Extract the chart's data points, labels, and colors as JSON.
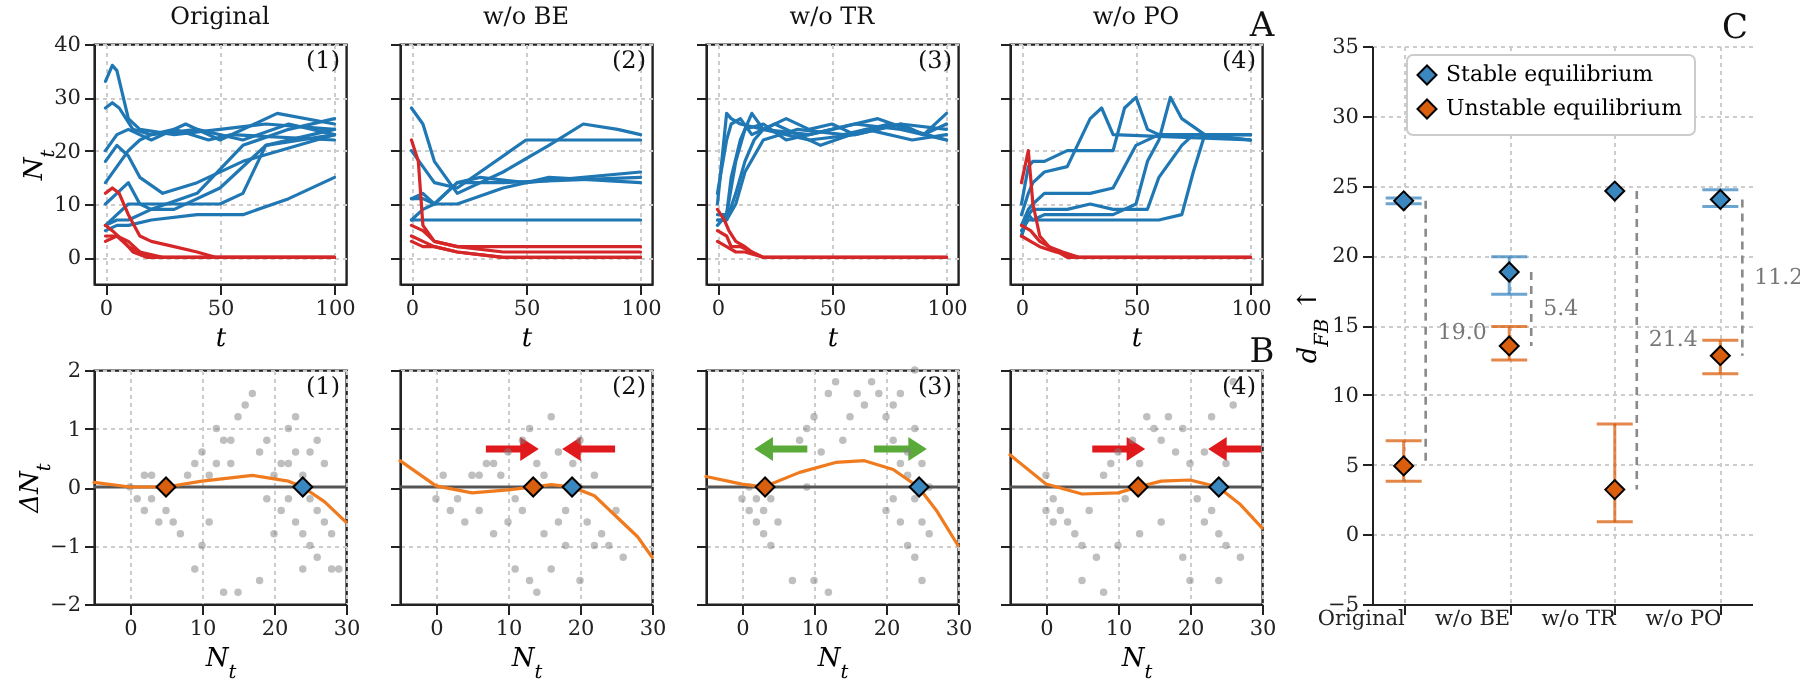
{
  "chart_data": [
    {
      "type": "line",
      "title": "Original",
      "xlabel": "t",
      "ylabel": "N$_{t}$",
      "xlim": [
        -5,
        105
      ],
      "xticks": [
        0,
        50,
        100
      ],
      "ylim": [
        -5,
        40
      ],
      "yticks": [
        0,
        10,
        20,
        30,
        40
      ],
      "grid": true,
      "annotations": [
        "(1)"
      ],
      "series": [
        {
          "color": "#1f77b4",
          "x": [
            0,
            3,
            5,
            10,
            15,
            30,
            50,
            70,
            100
          ],
          "values": [
            33,
            36,
            35,
            26,
            24,
            23,
            24,
            25,
            24
          ]
        },
        {
          "color": "#1f77b4",
          "x": [
            0,
            3,
            6,
            12,
            20,
            40,
            60,
            80,
            100
          ],
          "values": [
            28,
            29,
            28,
            24,
            23,
            24,
            22,
            25,
            23
          ]
        },
        {
          "color": "#1f77b4",
          "x": [
            0,
            5,
            10,
            20,
            35,
            50,
            75,
            100
          ],
          "values": [
            20,
            23,
            24,
            22,
            25,
            22,
            27,
            25
          ]
        },
        {
          "color": "#1f77b4",
          "x": [
            0,
            5,
            10,
            15,
            25,
            40,
            60,
            100
          ],
          "values": [
            18,
            21,
            19,
            15,
            12,
            14,
            18,
            23
          ]
        },
        {
          "color": "#1f77b4",
          "x": [
            0,
            5,
            10,
            15,
            20,
            30,
            45,
            55,
            100
          ],
          "values": [
            14,
            17,
            20,
            22,
            23,
            24,
            22,
            23,
            22
          ]
        },
        {
          "color": "#1f77b4",
          "x": [
            0,
            5,
            10,
            15,
            20,
            30,
            50,
            70,
            100
          ],
          "values": [
            10,
            12,
            14,
            10,
            9,
            9,
            13,
            21,
            24
          ]
        },
        {
          "color": "#1f77b4",
          "x": [
            0,
            5,
            10,
            20,
            30,
            50,
            60,
            70,
            100
          ],
          "values": [
            6,
            8,
            10,
            10,
            10,
            10,
            12,
            21,
            23
          ]
        },
        {
          "color": "#1f77b4",
          "x": [
            0,
            5,
            10,
            20,
            40,
            60,
            80,
            100
          ],
          "values": [
            5,
            6,
            6,
            7,
            8,
            8,
            11,
            15
          ]
        },
        {
          "color": "#1f77b4",
          "x": [
            0,
            5,
            10,
            20,
            40,
            60,
            80,
            100
          ],
          "values": [
            6,
            7,
            7,
            9,
            12,
            21,
            24,
            26
          ]
        },
        {
          "color": "#d62728",
          "x": [
            0,
            3,
            6,
            10,
            15,
            20,
            30,
            40,
            48,
            60,
            100
          ],
          "values": [
            12,
            13,
            12,
            8,
            4,
            3,
            2,
            1,
            0,
            0,
            0
          ]
        },
        {
          "color": "#d62728",
          "x": [
            0,
            5,
            10,
            15,
            20,
            100
          ],
          "values": [
            3,
            4,
            3,
            1,
            0,
            0
          ]
        },
        {
          "color": "#d62728",
          "x": [
            0,
            5,
            10,
            15,
            25,
            100
          ],
          "values": [
            4,
            4,
            2,
            1,
            0,
            0
          ]
        },
        {
          "color": "#d62728",
          "x": [
            0,
            3,
            8,
            12,
            18,
            100
          ],
          "values": [
            6,
            5,
            3,
            1,
            0,
            0
          ]
        }
      ]
    },
    {
      "type": "line",
      "title": "w/o BE",
      "xlabel": "t",
      "xlim": [
        -5,
        105
      ],
      "xticks": [
        0,
        50,
        100
      ],
      "ylim": [
        -5,
        40
      ],
      "yticks": [
        0,
        10,
        20,
        30,
        40
      ],
      "grid": true,
      "tick_labels": "x",
      "annotations": [
        "(2)"
      ],
      "series": [
        {
          "color": "#1f77b4",
          "x": [
            0,
            5,
            10,
            20,
            40,
            60,
            75,
            90,
            100
          ],
          "values": [
            28,
            25,
            18,
            12,
            16,
            21,
            25,
            24,
            23
          ]
        },
        {
          "color": "#1f77b4",
          "x": [
            0,
            5,
            10,
            20,
            30,
            50,
            70,
            100
          ],
          "values": [
            20,
            17,
            14,
            13,
            16,
            22,
            22,
            22
          ]
        },
        {
          "color": "#1f77b4",
          "x": [
            0,
            5,
            10,
            20,
            30,
            50,
            100
          ],
          "values": [
            11,
            11,
            10,
            14,
            15,
            14,
            16
          ]
        },
        {
          "color": "#1f77b4",
          "x": [
            0,
            5,
            10,
            20,
            40,
            100
          ],
          "values": [
            7,
            9,
            10,
            14,
            14,
            15
          ]
        },
        {
          "color": "#1f77b4",
          "x": [
            0,
            5,
            10,
            20,
            100
          ],
          "values": [
            7,
            7,
            7,
            7,
            7
          ]
        },
        {
          "color": "#1f77b4",
          "x": [
            0,
            5,
            10,
            20,
            40,
            60,
            100
          ],
          "values": [
            11,
            12,
            10,
            10,
            13,
            15,
            14
          ]
        },
        {
          "color": "#d62728",
          "x": [
            0,
            3,
            5,
            10,
            20,
            100
          ],
          "values": [
            22,
            18,
            6,
            3,
            2,
            2
          ]
        },
        {
          "color": "#d62728",
          "x": [
            0,
            5,
            10,
            20,
            40,
            100
          ],
          "values": [
            6,
            5,
            3,
            2,
            1,
            1
          ]
        },
        {
          "color": "#d62728",
          "x": [
            0,
            5,
            10,
            20,
            40,
            100
          ],
          "values": [
            4,
            3,
            2,
            1,
            0,
            0
          ]
        },
        {
          "color": "#d62728",
          "x": [
            0,
            5,
            10,
            20,
            40,
            100
          ],
          "values": [
            3,
            2,
            2,
            1,
            0,
            0
          ]
        }
      ]
    },
    {
      "type": "line",
      "title": "w/o TR",
      "xlabel": "t",
      "xlim": [
        -5,
        105
      ],
      "xticks": [
        0,
        50,
        100
      ],
      "ylim": [
        -5,
        40
      ],
      "yticks": [
        0,
        10,
        20,
        30,
        40
      ],
      "grid": true,
      "tick_labels": "x",
      "annotations": [
        "(3)"
      ],
      "series": [
        {
          "color": "#1f77b4",
          "x": [
            0,
            4,
            6,
            10,
            20,
            30,
            40,
            50,
            60,
            70,
            80,
            90,
            100
          ],
          "values": [
            10,
            27,
            26,
            25,
            24,
            26,
            24,
            25,
            23,
            24,
            25,
            23,
            25
          ]
        },
        {
          "color": "#1f77b4",
          "x": [
            0,
            4,
            6,
            10,
            15,
            20,
            40,
            60,
            80,
            100
          ],
          "values": [
            8,
            8,
            15,
            22,
            27,
            24,
            23,
            25,
            24,
            22
          ]
        },
        {
          "color": "#1f77b4",
          "x": [
            0,
            4,
            8,
            12,
            16,
            20,
            40,
            60,
            80,
            100
          ],
          "values": [
            7,
            7,
            12,
            18,
            22,
            24,
            22,
            23,
            25,
            24
          ]
        },
        {
          "color": "#1f77b4",
          "x": [
            0,
            4,
            8,
            12,
            20,
            30,
            50,
            70,
            90,
            100
          ],
          "values": [
            6,
            8,
            18,
            24,
            25,
            22,
            24,
            26,
            23,
            27
          ]
        },
        {
          "color": "#1f77b4",
          "x": [
            0,
            4,
            6,
            10,
            15,
            25,
            45,
            65,
            85,
            100
          ],
          "values": [
            12,
            22,
            25,
            26,
            23,
            25,
            21,
            24,
            22,
            23
          ]
        },
        {
          "color": "#1f77b4",
          "x": [
            0,
            4,
            8,
            12,
            20,
            35,
            55,
            75,
            100
          ],
          "values": [
            7,
            7,
            10,
            16,
            22,
            24,
            23,
            25,
            22
          ]
        },
        {
          "color": "#d62728",
          "x": [
            0,
            3,
            5,
            8,
            12,
            15,
            20,
            25,
            100
          ],
          "values": [
            9,
            7,
            5,
            3,
            2,
            1,
            0,
            0,
            0
          ]
        },
        {
          "color": "#d62728",
          "x": [
            0,
            4,
            6,
            10,
            15,
            20,
            100
          ],
          "values": [
            5,
            4,
            2,
            2,
            1,
            0,
            0
          ]
        },
        {
          "color": "#d62728",
          "x": [
            0,
            4,
            8,
            12,
            20,
            100
          ],
          "values": [
            3,
            2,
            1,
            1,
            0,
            0
          ]
        }
      ]
    },
    {
      "type": "line",
      "title": "w/o PO",
      "xlabel": "t",
      "xlim": [
        -5,
        105
      ],
      "xticks": [
        0,
        50,
        100
      ],
      "ylim": [
        -5,
        40
      ],
      "yticks": [
        0,
        10,
        20,
        30,
        40
      ],
      "grid": true,
      "tick_labels": "x",
      "annotations": [
        "(4)",
        "A"
      ],
      "series": [
        {
          "color": "#1f77b4",
          "x": [
            0,
            3,
            5,
            10,
            20,
            30,
            40,
            45,
            50,
            55,
            60,
            100
          ],
          "values": [
            10,
            17,
            18,
            18,
            20,
            20,
            20,
            28,
            30,
            24,
            23,
            23
          ]
        },
        {
          "color": "#1f77b4",
          "x": [
            0,
            3,
            5,
            10,
            20,
            30,
            35,
            40,
            100
          ],
          "values": [
            8,
            12,
            14,
            16,
            17,
            26,
            28,
            23,
            22
          ]
        },
        {
          "color": "#1f77b4",
          "x": [
            0,
            3,
            5,
            10,
            20,
            30,
            40,
            50,
            60,
            100
          ],
          "values": [
            6,
            9,
            10,
            12,
            12,
            12,
            13,
            21,
            23,
            23
          ]
        },
        {
          "color": "#1f77b4",
          "x": [
            0,
            3,
            5,
            10,
            20,
            40,
            50,
            55,
            60,
            65,
            70,
            80,
            100
          ],
          "values": [
            5,
            7,
            7,
            8,
            8,
            8,
            10,
            18,
            22,
            30,
            26,
            23,
            22
          ]
        },
        {
          "color": "#1f77b4",
          "x": [
            0,
            3,
            5,
            10,
            20,
            30,
            40,
            55,
            60,
            70,
            75,
            100
          ],
          "values": [
            4,
            8,
            9,
            9,
            9,
            10,
            9,
            9,
            15,
            21,
            23,
            22
          ]
        },
        {
          "color": "#1f77b4",
          "x": [
            0,
            3,
            5,
            10,
            20,
            40,
            60,
            70,
            75,
            80,
            100
          ],
          "values": [
            4,
            8,
            7,
            7,
            7,
            7,
            7,
            8,
            16,
            23,
            23
          ]
        },
        {
          "color": "#d62728",
          "x": [
            0,
            3,
            5,
            8,
            12,
            20,
            100
          ],
          "values": [
            14,
            20,
            10,
            4,
            2,
            0,
            0
          ]
        },
        {
          "color": "#d62728",
          "x": [
            0,
            4,
            8,
            12,
            18,
            25,
            100
          ],
          "values": [
            6,
            5,
            3,
            2,
            1,
            0,
            0
          ]
        },
        {
          "color": "#d62728",
          "x": [
            0,
            4,
            8,
            15,
            25,
            100
          ],
          "values": [
            4,
            3,
            2,
            1,
            0,
            0
          ]
        }
      ]
    },
    {
      "type": "scatter",
      "xlabel": "N$_{t}$",
      "ylabel": "ΔN$_{t}$",
      "xlim": [
        -5,
        30
      ],
      "xticks": [
        0,
        10,
        20,
        30
      ],
      "ylim": [
        -2,
        2
      ],
      "yticks": [
        -2,
        -1,
        0,
        1,
        2
      ],
      "grid": true,
      "annotations": [
        "(1)"
      ],
      "ref_lines": [
        {
          "axis": "y",
          "value": 0,
          "color": "#555555"
        }
      ],
      "series": [
        {
          "color": "#808080",
          "marker": "circle",
          "x": [
            0,
            1,
            2,
            3,
            4,
            2,
            5,
            6,
            7,
            3,
            8,
            9,
            10,
            11,
            12,
            13,
            14,
            15,
            16,
            17,
            12,
            14,
            10,
            11,
            13,
            15,
            9,
            18,
            19,
            20,
            21,
            22,
            23,
            24,
            25,
            26,
            22,
            23,
            24,
            25,
            26,
            27,
            28,
            29,
            21,
            20,
            18,
            24,
            26,
            27,
            23,
            25,
            22,
            19,
            28
          ],
          "values": [
            0,
            -0.2,
            -0.4,
            -0.2,
            -0.6,
            0.2,
            -0.4,
            -0.6,
            -0.8,
            0.2,
            0.2,
            0.4,
            0.6,
            0.2,
            1,
            0.8,
            0.4,
            1.2,
            1.4,
            1.6,
            0.4,
            0.8,
            -1,
            -0.6,
            -1.8,
            -1.8,
            -1.4,
            0.6,
            0.8,
            0.2,
            0.4,
            1,
            0.6,
            0.2,
            -0.2,
            -0.4,
            -0.2,
            -0.6,
            -0.8,
            -1,
            0.8,
            -0.6,
            -0.8,
            -1.4,
            -0.4,
            -0.8,
            -1.6,
            -1.4,
            -1.2,
            0.4,
            1.2,
            0.6,
            0.4,
            -0.2,
            -1.4
          ]
        },
        {
          "type": "line",
          "color": "#f07a1e",
          "x": [
            -5,
            0,
            5,
            10,
            17,
            22,
            24,
            27,
            30
          ],
          "values": [
            0.08,
            0,
            0,
            0.1,
            0.2,
            0.1,
            0,
            -0.25,
            -0.6
          ]
        },
        {
          "color": "#d95f0e",
          "marker": "diamond",
          "x": [
            5
          ],
          "values": [
            0
          ]
        },
        {
          "color": "#3a87c0",
          "marker": "diamond",
          "x": [
            24
          ],
          "values": [
            0
          ]
        }
      ]
    },
    {
      "type": "scatter",
      "xlabel": "N$_{t}$",
      "xlim": [
        -5,
        30
      ],
      "xticks": [
        0,
        10,
        20,
        30
      ],
      "ylim": [
        -2,
        2
      ],
      "yticks": [
        -2,
        -1,
        0,
        1,
        2
      ],
      "grid": true,
      "tick_labels": "x",
      "annotations": [
        "(2)"
      ],
      "ref_lines": [
        {
          "axis": "y",
          "value": 0,
          "color": "#555555"
        }
      ],
      "series": [
        {
          "color": "#808080",
          "marker": "circle",
          "x": [
            0,
            1,
            2,
            3,
            4,
            5,
            6,
            7,
            8,
            9,
            10,
            11,
            12,
            13,
            14,
            15,
            16,
            17,
            18,
            19,
            20,
            21,
            22,
            23,
            24,
            25,
            26,
            11,
            13,
            14,
            16,
            20,
            18,
            10,
            6,
            8,
            15,
            17,
            12,
            22
          ],
          "values": [
            -0.2,
            0.2,
            -0.4,
            -0.2,
            -0.6,
            0.2,
            -0.4,
            0.4,
            -0.8,
            0.2,
            0.6,
            -0.2,
            0.8,
            1,
            0.4,
            0.2,
            1.2,
            0.6,
            -0.4,
            0.4,
            0.8,
            -0.6,
            0.2,
            -0.8,
            -1,
            -0.4,
            -1.2,
            -1.4,
            -1.6,
            -1.8,
            -1.4,
            -1.6,
            -1,
            -0.6,
            0.2,
            0.4,
            -0.8,
            -0.6,
            -0.4,
            -1
          ]
        },
        {
          "type": "line",
          "color": "#f07a1e",
          "x": [
            -5,
            0,
            5,
            10,
            13.5,
            16,
            18.9,
            22,
            25,
            28,
            30
          ],
          "values": [
            0.45,
            0.02,
            -0.1,
            -0.05,
            0,
            0.04,
            0,
            -0.15,
            -0.5,
            -0.85,
            -1.2
          ]
        },
        {
          "color": "#d95f0e",
          "marker": "diamond",
          "x": [
            13.5
          ],
          "values": [
            0
          ]
        },
        {
          "color": "#3a87c0",
          "marker": "diamond",
          "x": [
            18.9
          ],
          "values": [
            0
          ]
        }
      ]
    },
    {
      "type": "scatter",
      "xlabel": "N$_{t}$",
      "xlim": [
        -5,
        30
      ],
      "xticks": [
        0,
        10,
        20,
        30
      ],
      "ylim": [
        -2,
        2
      ],
      "yticks": [
        -2,
        -1,
        0,
        1,
        2
      ],
      "grid": true,
      "tick_labels": "x",
      "annotations": [
        "(3)"
      ],
      "ref_lines": [
        {
          "axis": "y",
          "value": 0,
          "color": "#555555"
        }
      ],
      "series": [
        {
          "color": "#808080",
          "marker": "circle",
          "x": [
            0,
            1,
            2,
            3,
            4,
            1,
            2,
            3,
            5,
            4,
            8,
            9,
            10,
            11,
            12,
            13,
            14,
            15,
            16,
            17,
            18,
            19,
            9,
            10,
            7,
            12,
            20,
            21,
            22,
            23,
            24,
            25,
            26,
            21,
            22,
            23,
            24,
            25,
            22,
            24,
            23,
            25,
            21,
            26,
            20,
            24
          ],
          "values": [
            -0.2,
            -0.4,
            -0.6,
            -0.8,
            -1,
            0,
            -0.2,
            -0.4,
            -0.6,
            -0.2,
            0.8,
            1,
            1.2,
            0.6,
            1.6,
            1.8,
            0.8,
            1.2,
            1.6,
            1.4,
            1.8,
            1.6,
            0,
            -1.6,
            -1.6,
            -1.8,
            1.2,
            0.8,
            0.4,
            0.2,
            -0.2,
            -0.6,
            -0.8,
            -0.2,
            -0.6,
            -1,
            -1.2,
            -1.6,
            1.6,
            2,
            0.6,
            0.4,
            1.4,
            0,
            -0.4,
            1
          ]
        },
        {
          "type": "line",
          "color": "#f07a1e",
          "x": [
            -5,
            0,
            3,
            8,
            13,
            17,
            21,
            24.5,
            27,
            30
          ],
          "values": [
            0.18,
            0.05,
            0,
            0.25,
            0.42,
            0.45,
            0.3,
            0,
            -0.4,
            -1
          ]
        },
        {
          "color": "#d95f0e",
          "marker": "diamond",
          "x": [
            3.2
          ],
          "values": [
            0
          ]
        },
        {
          "color": "#3a87c0",
          "marker": "diamond",
          "x": [
            24.6
          ],
          "values": [
            0
          ]
        }
      ]
    },
    {
      "type": "scatter",
      "xlabel": "N$_{t}$",
      "xlim": [
        -5,
        30
      ],
      "xticks": [
        0,
        10,
        20,
        30
      ],
      "ylim": [
        -2,
        2
      ],
      "yticks": [
        -2,
        -1,
        0,
        1,
        2
      ],
      "grid": true,
      "tick_labels": "x",
      "annotations": [
        "(4)",
        "B"
      ],
      "ref_lines": [
        {
          "axis": "y",
          "value": 0,
          "color": "#555555"
        }
      ],
      "series": [
        {
          "color": "#808080",
          "marker": "circle",
          "x": [
            0,
            1,
            2,
            3,
            4,
            5,
            0,
            1,
            6,
            7,
            5,
            8,
            9,
            10,
            11,
            12,
            13,
            14,
            15,
            16,
            17,
            18,
            19,
            20,
            21,
            22,
            23,
            24,
            25,
            26,
            27,
            22,
            20,
            24,
            19,
            16,
            13,
            10,
            8,
            25,
            23,
            26
          ],
          "values": [
            0.2,
            -0.2,
            -0.4,
            -0.6,
            -0.8,
            -1,
            -0.4,
            -0.6,
            -0.4,
            -1.2,
            -1.6,
            0.2,
            0.4,
            0.6,
            -0.2,
            0.8,
            0.4,
            1.2,
            1,
            0.8,
            1.2,
            0.6,
            1,
            0.4,
            -0.2,
            0.6,
            -0.4,
            -0.8,
            -1,
            1.4,
            -1.2,
            -0.6,
            -1.6,
            -1.6,
            -1.2,
            -0.6,
            -0.8,
            -1,
            -1.8,
            0.4,
            1.2,
            1.8
          ]
        },
        {
          "type": "line",
          "color": "#f07a1e",
          "x": [
            -5,
            0,
            5,
            10,
            12.8,
            16,
            20,
            23.9,
            27,
            30
          ],
          "values": [
            0.55,
            0.05,
            -0.12,
            -0.1,
            0,
            0.1,
            0.12,
            0,
            -0.3,
            -0.7
          ]
        },
        {
          "color": "#d95f0e",
          "marker": "diamond",
          "x": [
            12.8
          ],
          "values": [
            0
          ]
        },
        {
          "color": "#3a87c0",
          "marker": "diamond",
          "x": [
            24
          ],
          "values": [
            0
          ]
        }
      ]
    },
    {
      "type": "scatter",
      "ylabel": "d$_{FB}$ ↑",
      "categories": [
        "Original",
        "w/o BE",
        "w/o TR",
        "w/o PO"
      ],
      "ylim": [
        -5,
        35
      ],
      "yticks": [
        -5,
        0,
        5,
        10,
        15,
        20,
        25,
        30,
        35
      ],
      "grid": true,
      "legend": "top",
      "marker": "diamond",
      "annotations": [
        "C",
        "19.0",
        "5.4",
        "21.4",
        "11.2"
      ],
      "series": [
        {
          "name": "Stable equilibrium",
          "color": "#3a87c0",
          "values": [
            23.9,
            18.8,
            24.6,
            24.0
          ],
          "errors": [
            [
              23.7,
              24.1
            ],
            [
              17.2,
              19.9
            ],
            null,
            [
              23.5,
              24.7
            ]
          ]
        },
        {
          "name": "Unstable equilibrium",
          "color": "#d95f0e",
          "values": [
            4.9,
            13.5,
            3.2,
            12.8
          ],
          "errors": [
            [
              3.8,
              6.7
            ],
            [
              12.5,
              14.9
            ],
            [
              0.9,
              7.9
            ],
            [
              11.5,
              13.9
            ]
          ]
        }
      ]
    }
  ]
}
